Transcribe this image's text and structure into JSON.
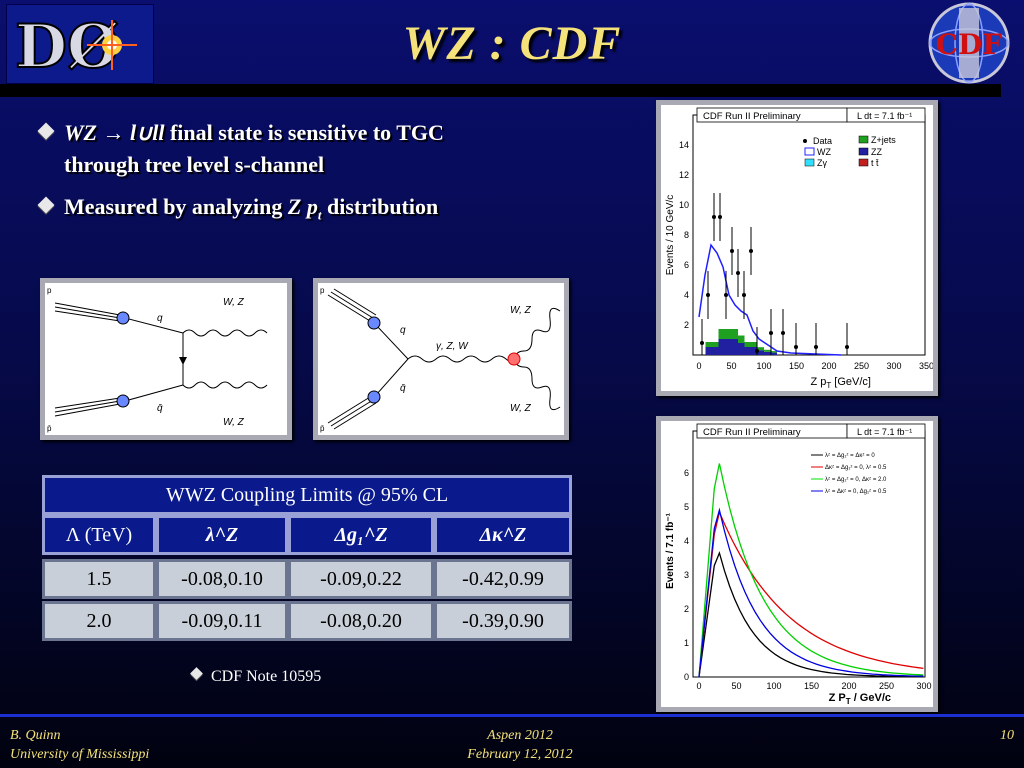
{
  "title": "WZ : CDF",
  "logo_left": "DØ",
  "logo_right": "CDF",
  "bullets": [
    {
      "math": "WZ → l∪ll",
      "rest": " final state is sensitive to TGC",
      "line2": "through tree level s-channel"
    },
    {
      "text": "Measured by analyzing ",
      "math": "Z p",
      "sub": "t",
      "rest": " distribution"
    }
  ],
  "diagram1": {
    "labels": [
      "q",
      "W, Z",
      "q̄",
      "W, Z",
      "p",
      "p̄"
    ]
  },
  "diagram2": {
    "labels": [
      "q",
      "γ, Z, W",
      "W, Z",
      "q̄",
      "W, Z",
      "p",
      "p̄"
    ]
  },
  "table": {
    "title": "WWZ Coupling Limits @ 95% CL",
    "headers": [
      "Λ (TeV)",
      "λ^Z",
      "Δg₁^Z",
      "Δκ^Z"
    ],
    "rows": [
      [
        "1.5",
        "-0.08,0.10",
        "-0.09,0.22",
        "-0.42,0.99"
      ],
      [
        "2.0",
        "-0.09,0.11",
        "-0.08,0.20",
        "-0.39,0.90"
      ]
    ]
  },
  "note": "CDF Note 10595",
  "plot1": {
    "header": "CDF Run II Preliminary",
    "lumi": "L dt = 7.1 fb⁻¹",
    "ylabel": "Events / 10 GeV/c",
    "xlabel": "Z p",
    "xlabel_sub": "T",
    "xlabel_tail": " [GeV/c]",
    "legend": [
      "Data",
      "Z+jets",
      "WZ",
      "ZZ",
      "Zγ",
      "t t̄"
    ],
    "yticks": [
      "14",
      "12",
      "10",
      "8",
      "6",
      "4",
      "2"
    ],
    "xticks": [
      "0",
      "50",
      "100",
      "150",
      "200",
      "250",
      "300",
      "350"
    ]
  },
  "plot2": {
    "header": "CDF Run II Preliminary",
    "lumi": "L dt = 7.1 fb⁻¹",
    "ylabel": "Events / 7.1 fb⁻¹",
    "xlabel": "Z P",
    "xlabel_sub": "T",
    "xlabel_tail": " / GeV/c",
    "legend": [
      "λᶻ = Δg₁ᶻ = Δκᶻ = 0",
      "Δκᶻ = Δg₁ᶻ = 0, λᶻ = 0.5",
      "λᶻ = Δg₁ᶻ = 0, Δκᶻ = 2.0",
      "λᶻ = Δκᶻ = 0, Δg₁ᶻ = 0.5"
    ],
    "yticks": [
      "6",
      "5",
      "4",
      "3",
      "2",
      "1",
      "0"
    ],
    "xticks": [
      "0",
      "50",
      "100",
      "150",
      "200",
      "250",
      "300"
    ]
  },
  "footer": {
    "left1": "B. Quinn",
    "left2": "University of Mississippi",
    "center1": "Aspen 2012",
    "center2": "February 12, 2012",
    "page": "10"
  }
}
